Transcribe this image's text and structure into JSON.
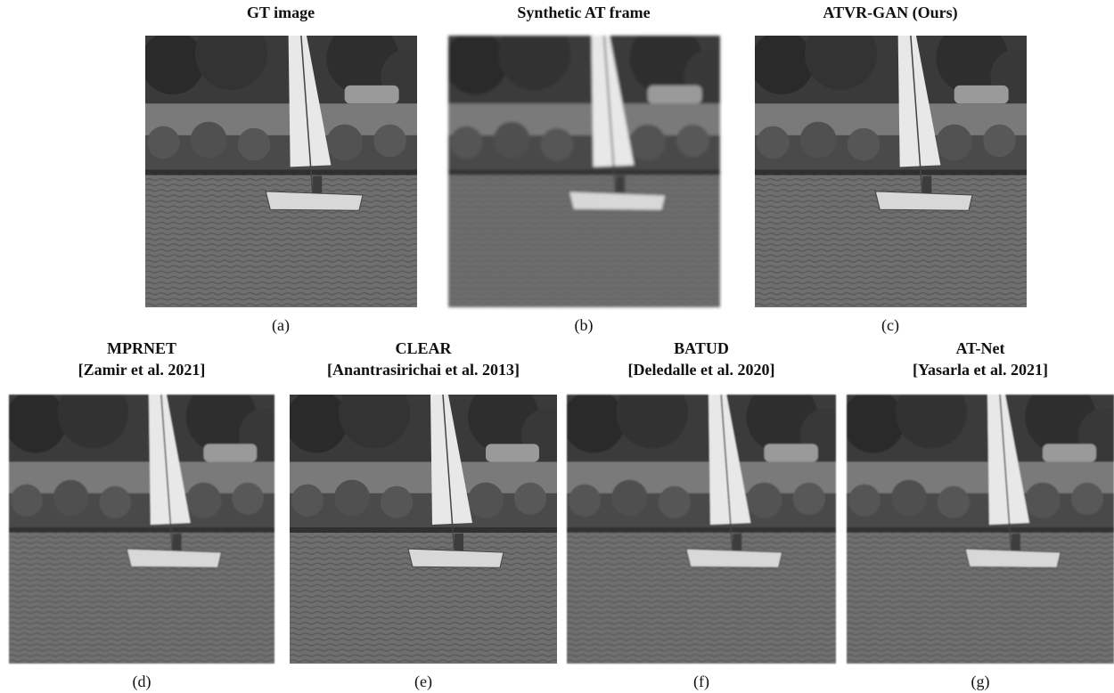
{
  "panels": [
    {
      "title": "GT image",
      "label": "(a)"
    },
    {
      "title": "Synthetic AT frame",
      "label": "(b)"
    },
    {
      "title": "ATVR-GAN (Ours)",
      "label": "(c)"
    },
    {
      "title": "MPRNET",
      "citation": "[Zamir et al. 2021]",
      "label": "(d)"
    },
    {
      "title": "CLEAR",
      "citation": "[Anantrasirichai et al. 2013]",
      "label": "(e)"
    },
    {
      "title": "BATUD",
      "citation": "[Deledalle et al. 2020]",
      "label": "(f)"
    },
    {
      "title": "AT-Net",
      "citation": "[Yasarla et al. 2021]",
      "label": "(g)"
    }
  ]
}
